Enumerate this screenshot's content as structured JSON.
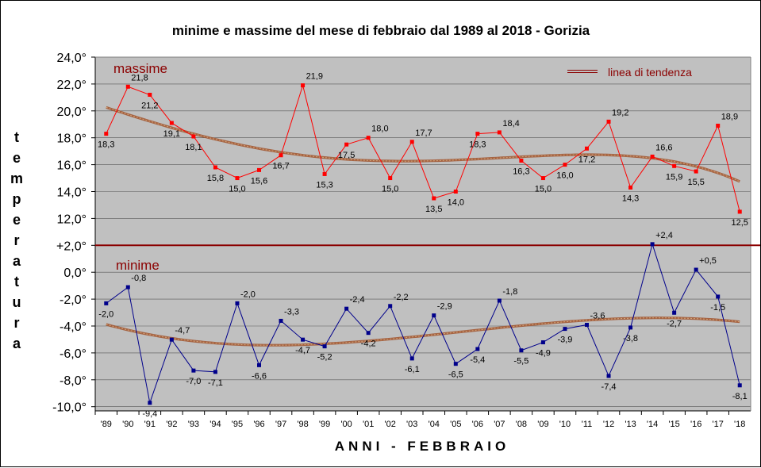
{
  "chart_data": {
    "type": "line",
    "title": "minime e massime del mese di febbraio dal 1989 al 2018 - Gorizia",
    "xlabel": "ANNI - FEBBRAIO",
    "ylabel": "temperatura",
    "x": [
      "'89",
      "'90",
      "'91",
      "'92",
      "'93",
      "'94",
      "'95",
      "'96",
      "'97",
      "'98",
      "'99",
      "'00",
      "'01",
      "'02",
      "'03",
      "'04",
      "'05",
      "'06",
      "'07",
      "'08",
      "'09",
      "'10",
      "'11",
      "'12",
      "'13",
      "'14",
      "'15",
      "'16",
      "'17",
      "'18"
    ],
    "y_ticks": [
      "24,0°",
      "22,0°",
      "20,0°",
      "18,0°",
      "16,0°",
      "14,0°",
      "12,0°",
      "+2,0°",
      "0,0°",
      "-2,0°",
      "-4,0°",
      "-6,0°",
      "-8,0°",
      "-10,0°"
    ],
    "grid": true,
    "legend": "top-right",
    "series": [
      {
        "name": "massime",
        "color": "#ff0000",
        "values": [
          18.3,
          21.8,
          21.2,
          19.1,
          18.1,
          15.8,
          15.0,
          15.6,
          16.7,
          21.9,
          15.3,
          17.5,
          18.0,
          15.0,
          17.7,
          13.5,
          14.0,
          18.3,
          18.4,
          16.3,
          15.0,
          16.0,
          17.2,
          19.2,
          14.3,
          16.6,
          15.9,
          15.5,
          18.9,
          12.5
        ],
        "labels": [
          "18,3",
          "21,8",
          "21,2",
          "19,1",
          "18,1",
          "15,8",
          "15,0",
          "15,6",
          "16,7",
          "21,9",
          "15,3",
          "17,5",
          "18,0",
          "15,0",
          "17,7",
          "13,5",
          "14,0",
          "18,3",
          "18,4",
          "16,3",
          "15,0",
          "16,0",
          "17,2",
          "19,2",
          "14,3",
          "16,6",
          "15,9",
          "15,5",
          "18,9",
          "12,5"
        ]
      },
      {
        "name": "minime",
        "color": "#00008b",
        "values": [
          -2.0,
          -0.8,
          -9.4,
          -4.7,
          -7.0,
          -7.1,
          -2.0,
          -6.6,
          -3.3,
          -4.7,
          -5.2,
          -2.4,
          -4.2,
          -2.2,
          -6.1,
          -2.9,
          -6.5,
          -5.4,
          -1.8,
          -5.5,
          -4.9,
          -3.9,
          -3.6,
          -7.4,
          -3.8,
          2.4,
          -2.7,
          0.5,
          -1.5,
          -8.1
        ],
        "labels": [
          "-2,0",
          "-0,8",
          "-9,4",
          "-4,7",
          "-7,0",
          "-7,1",
          "-2,0",
          "-6,6",
          "-3,3",
          "-4,7",
          "-5,2",
          "-2,4",
          "-4,2",
          "-2,2",
          "-6,1",
          "-2,9",
          "-6,5",
          "-5,4",
          "-1,8",
          "-5,5",
          "-4,9",
          "-3,9",
          "-3,6",
          "-7,4",
          "-3,8",
          "+2,4",
          "-2,7",
          "+0,5",
          "-1,5",
          "-8,1"
        ]
      }
    ],
    "trend_label": "linea di tendenza",
    "trend_color": "#a0522d",
    "separator_color": "#8b0000"
  }
}
